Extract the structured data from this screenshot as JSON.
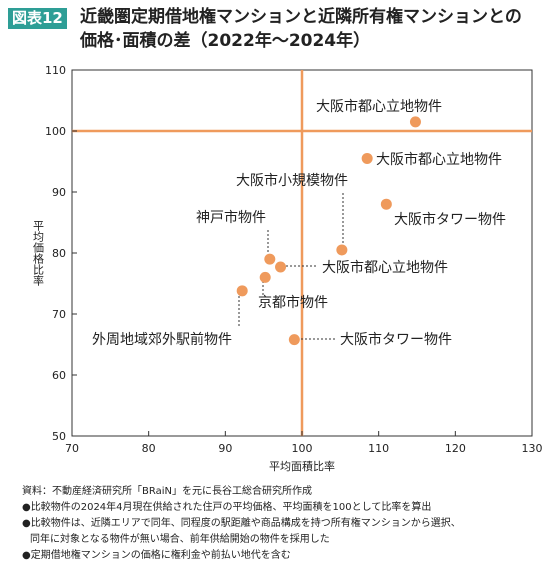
{
  "header": {
    "badge": "図表12",
    "title_line1": "近畿圏定期借地権マンションと近隣所有権マンションとの",
    "title_line2": "価格･面積の差（2022年～2024年）"
  },
  "chart_data": {
    "type": "scatter",
    "xlabel": "平均面積比率",
    "ylabel": "平均価格比率",
    "xlim": [
      70,
      130
    ],
    "ylim": [
      50,
      110
    ],
    "xticks": [
      70,
      80,
      90,
      100,
      110,
      120,
      130
    ],
    "yticks": [
      50,
      60,
      70,
      80,
      90,
      100,
      110
    ],
    "reference_lines": {
      "x": 100,
      "y": 100
    },
    "grid": false,
    "colors": {
      "point": "#ef9a5c",
      "reference": "#ef9a5c",
      "axis": "#333333",
      "leader": "#333333"
    },
    "points": [
      {
        "label": "大阪市都心立地物件",
        "x": 114.8,
        "y": 101.5
      },
      {
        "label": "大阪市都心立地物件",
        "x": 108.5,
        "y": 95.5
      },
      {
        "label": "大阪市タワー物件",
        "x": 111.0,
        "y": 88.0
      },
      {
        "label": "大阪市小規模物件",
        "x": 105.2,
        "y": 80.5
      },
      {
        "label": "神戸市物件",
        "x": 95.8,
        "y": 79.0
      },
      {
        "label": "大阪市都心立地物件",
        "x": 97.2,
        "y": 77.7
      },
      {
        "label": "京都市物件",
        "x": 95.2,
        "y": 76.0
      },
      {
        "label": "外周地域郊外駅前物件",
        "x": 92.2,
        "y": 73.8
      },
      {
        "label": "大阪市タワー物件",
        "x": 99.0,
        "y": 65.8
      }
    ]
  },
  "notes": {
    "source": "資料：不動産経済研究所「BRaiN」を元に長谷工総合研究所作成",
    "note1": "●比較物件の2024年4月現在供給された住戸の平均価格、平均面積を100として比率を算出",
    "note2a": "●比較物件は、近隣エリアで同年、同程度の駅距離や商品構成を持つ所有権マンションから選択、",
    "note2b": "同年に対象となる物件が無い場合、前年供給開始の物件を採用した",
    "note3": "●定期借地権マンションの価格に権利金や前払い地代を含む"
  }
}
